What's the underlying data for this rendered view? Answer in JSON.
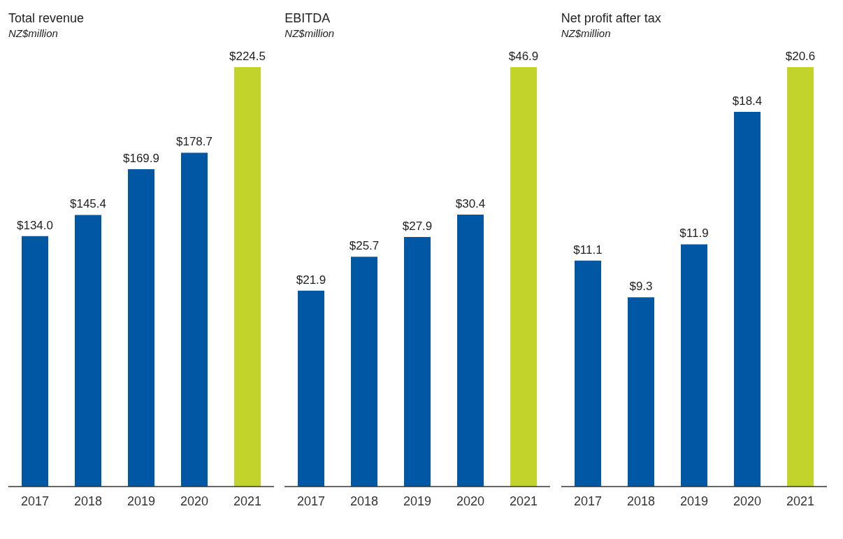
{
  "chart_data": [
    {
      "type": "bar",
      "title": "Total revenue",
      "subtitle": "NZ$million",
      "categories": [
        "2017",
        "2018",
        "2019",
        "2020",
        "2021"
      ],
      "values": [
        134.0,
        145.4,
        169.9,
        178.7,
        224.5
      ],
      "colors": [
        "#0057a4",
        "#0057a4",
        "#0057a4",
        "#0057a4",
        "#c2d32c"
      ],
      "value_labels": [
        "$134.0",
        "$145.4",
        "$169.9",
        "$178.7",
        "$224.5"
      ]
    },
    {
      "type": "bar",
      "title": "EBITDA",
      "subtitle": "NZ$million",
      "categories": [
        "2017",
        "2018",
        "2019",
        "2020",
        "2021"
      ],
      "values": [
        21.9,
        25.7,
        27.9,
        30.4,
        46.9
      ],
      "colors": [
        "#0057a4",
        "#0057a4",
        "#0057a4",
        "#0057a4",
        "#c2d32c"
      ],
      "value_labels": [
        "$21.9",
        "$25.7",
        "$27.9",
        "$30.4",
        "$46.9"
      ]
    },
    {
      "type": "bar",
      "title": "Net profit after tax",
      "subtitle": "NZ$million",
      "categories": [
        "2017",
        "2018",
        "2019",
        "2020",
        "2021"
      ],
      "values": [
        11.1,
        9.3,
        11.9,
        18.4,
        20.6
      ],
      "colors": [
        "#0057a4",
        "#0057a4",
        "#0057a4",
        "#0057a4",
        "#c2d32c"
      ],
      "value_labels": [
        "$11.1",
        "$9.3",
        "$11.9",
        "$18.4",
        "$20.6"
      ]
    }
  ]
}
